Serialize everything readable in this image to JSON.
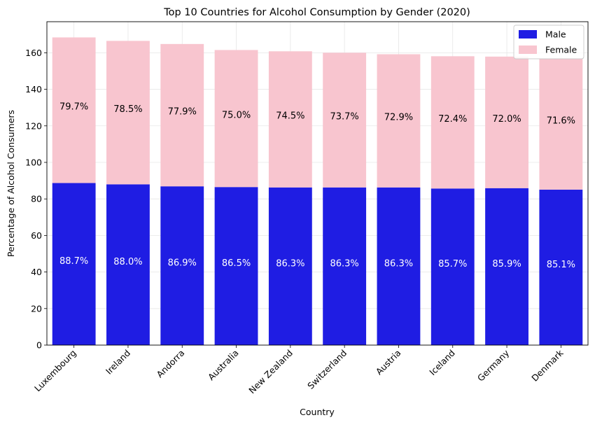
{
  "chart_data": {
    "type": "bar",
    "stacked": true,
    "title": "Top 10 Countries for Alcohol Consumption by Gender (2020)",
    "xlabel": "Country",
    "ylabel": "Percentage of Alcohol Consumers",
    "ylim": [
      0,
      177
    ],
    "yticks": [
      "0",
      "20",
      "40",
      "60",
      "80",
      "100",
      "120",
      "140",
      "160"
    ],
    "grid": true,
    "legend_position": "top-right",
    "categories": [
      "Luxembourg",
      "Ireland",
      "Andorra",
      "Australia",
      "New Zealand",
      "Switzerland",
      "Austria",
      "Iceland",
      "Germany",
      "Denmark"
    ],
    "series": [
      {
        "name": "Male",
        "color": "#1f1de3",
        "label_color": "#ffffff",
        "values": [
          88.7,
          88.0,
          86.9,
          86.5,
          86.3,
          86.3,
          86.3,
          85.7,
          85.9,
          85.1
        ],
        "labels": [
          "88.7%",
          "88.0%",
          "86.9%",
          "86.5%",
          "86.3%",
          "86.3%",
          "86.3%",
          "85.7%",
          "85.9%",
          "85.1%"
        ]
      },
      {
        "name": "Female",
        "color": "#f8c5cf",
        "label_color": "#000000",
        "values": [
          79.7,
          78.5,
          77.9,
          75.0,
          74.5,
          73.7,
          72.9,
          72.4,
          72.0,
          71.6
        ],
        "labels": [
          "79.7%",
          "78.5%",
          "77.9%",
          "75.0%",
          "74.5%",
          "73.7%",
          "72.9%",
          "72.4%",
          "72.0%",
          "71.6%"
        ]
      }
    ]
  }
}
